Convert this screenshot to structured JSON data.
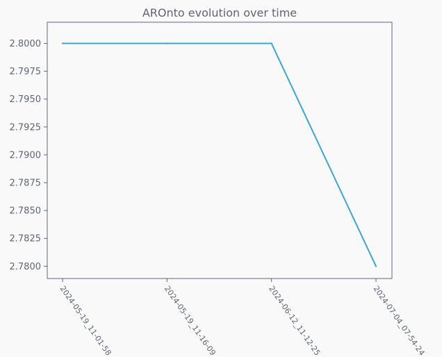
{
  "chart_data": {
    "type": "line",
    "title": "AROnto evolution over time",
    "xlabel": "",
    "ylabel": "",
    "categories": [
      "2024-05-19_11-01-58",
      "2024-05-19_11-16-09",
      "2024-06-12_11-12-25",
      "2024-07-04_07-54-24"
    ],
    "series": [
      {
        "values": [
          2.8,
          2.8,
          2.8,
          2.78
        ],
        "color": "#3aa6d8"
      }
    ],
    "ylim": [
      2.7789,
      2.8019
    ],
    "yticks": [
      2.78,
      2.7825,
      2.785,
      2.7875,
      2.79,
      2.7925,
      2.795,
      2.7975,
      2.8
    ],
    "ytick_labels": [
      "2.7800",
      "2.7825",
      "2.7850",
      "2.7875",
      "2.7900",
      "2.7925",
      "2.7950",
      "2.7975",
      "2.8000"
    ],
    "grid": false,
    "legend": "none",
    "frame_color": "#5f6672"
  }
}
